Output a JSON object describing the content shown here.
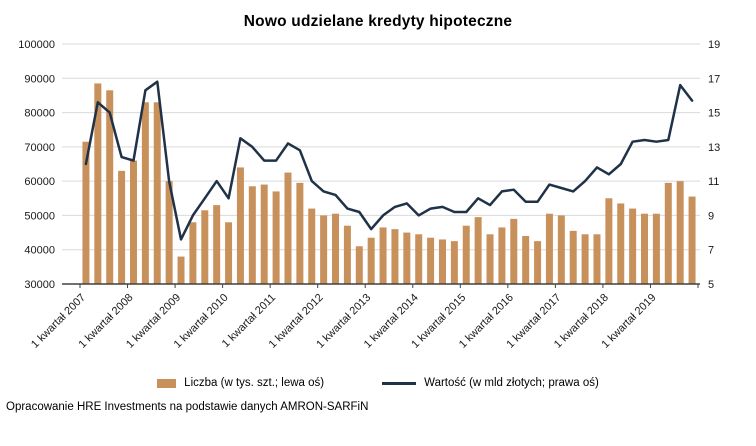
{
  "title": "Nowo udzielane kredyty hipoteczne",
  "footer": "Opracowanie HRE Investments na podstawie danych AMRON-SARFiN",
  "legend": {
    "bars_label": "Liczba (w tys. szt.; lewa oś)",
    "line_label": "Wartość (w mld złotych; prawa oś)"
  },
  "colors": {
    "bar": "#C8915C",
    "line": "#1F3247",
    "grid": "#D9D9D9",
    "axis": "#404040",
    "text": "#1a1a1a"
  },
  "chart_data": {
    "type": "bar",
    "title": "Nowo udzielane kredyty hipoteczne",
    "x_tick_labels": [
      "1 kwartał 2007",
      "1 kwartał 2008",
      "1 kwartał 2009",
      "1 kwartał 2010",
      "1 kwartał 2011",
      "1 kwartał 2012",
      "1 kwartał 2013",
      "1 kwartał 2014",
      "1 kwartał 2015",
      "1 kwartał 2016",
      "1 kwartał 2017",
      "1 kwartał 2018",
      "1 kwartał 2019"
    ],
    "x_tick_every": 4,
    "left_axis": {
      "min": 30000,
      "max": 100000,
      "step": 10000
    },
    "right_axis": {
      "min": 5,
      "max": 19,
      "step": 2
    },
    "grid": true,
    "legend_position": "bottom",
    "series": [
      {
        "name": "Liczba (w tys. szt.; lewa oś)",
        "type": "bar",
        "axis": "left",
        "values": [
          71500,
          88500,
          86500,
          63000,
          66000,
          83000,
          83000,
          60000,
          38000,
          48000,
          51500,
          53000,
          48000,
          64000,
          58500,
          59000,
          57000,
          62500,
          59500,
          52000,
          50000,
          50500,
          47000,
          41000,
          43500,
          46500,
          46000,
          45000,
          44500,
          43500,
          43000,
          42500,
          47000,
          49500,
          44500,
          46500,
          49000,
          44000,
          42500,
          50500,
          50000,
          45500,
          44500,
          44500,
          55000,
          53500,
          52000,
          50500,
          50500,
          59500,
          60000,
          55500
        ]
      },
      {
        "name": "Wartość (w mld złotych; prawa oś)",
        "type": "line",
        "axis": "right",
        "values": [
          12.0,
          15.6,
          15.0,
          12.4,
          12.2,
          16.3,
          16.8,
          11.0,
          7.6,
          9.0,
          10.0,
          11.0,
          10.0,
          13.5,
          13.0,
          12.2,
          12.2,
          13.2,
          12.8,
          11.0,
          10.4,
          10.2,
          9.4,
          9.2,
          8.2,
          9.0,
          9.5,
          9.7,
          9.0,
          9.4,
          9.5,
          9.2,
          9.2,
          10.0,
          9.6,
          10.4,
          10.5,
          9.8,
          9.8,
          10.8,
          10.6,
          10.4,
          11.0,
          11.8,
          11.4,
          12.0,
          13.3,
          13.4,
          13.3,
          13.4,
          16.6,
          15.7
        ]
      }
    ]
  }
}
